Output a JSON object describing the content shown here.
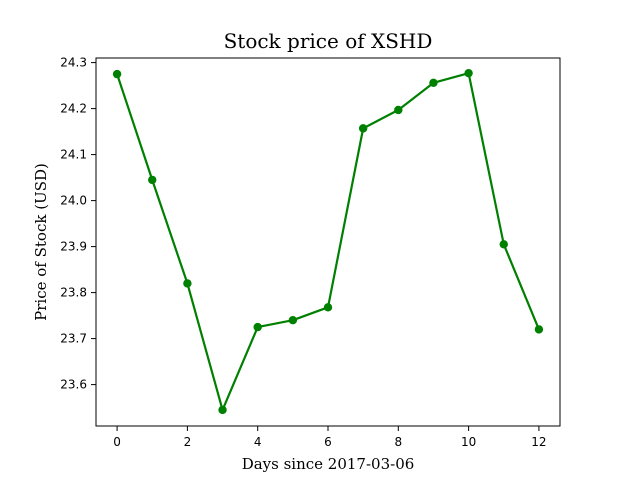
{
  "chart_data": {
    "type": "line",
    "title": "Stock price of XSHD",
    "xlabel": "Days since 2017-03-06",
    "ylabel": "Price of Stock (USD)",
    "x": [
      0,
      1,
      2,
      3,
      4,
      5,
      6,
      7,
      8,
      9,
      10,
      11,
      12
    ],
    "series": [
      {
        "values": [
          24.275,
          24.045,
          23.82,
          23.545,
          23.725,
          23.74,
          23.768,
          24.157,
          24.197,
          24.256,
          24.277,
          23.905,
          23.72
        ],
        "color": "#008000",
        "marker": "circle"
      }
    ],
    "xlim": [
      -0.6,
      12.6
    ],
    "ylim": [
      23.51,
      24.31
    ],
    "xticks": [
      0,
      2,
      4,
      6,
      8,
      10,
      12
    ],
    "xtick_labels": [
      "0",
      "2",
      "4",
      "6",
      "8",
      "10",
      "12"
    ],
    "yticks": [
      23.6,
      23.7,
      23.8,
      23.9,
      24.0,
      24.1,
      24.2,
      24.3
    ],
    "ytick_labels": [
      "23.6",
      "23.7",
      "23.8",
      "23.9",
      "24.0",
      "24.1",
      "24.2",
      "24.3"
    ],
    "grid": false,
    "legend": "none"
  }
}
